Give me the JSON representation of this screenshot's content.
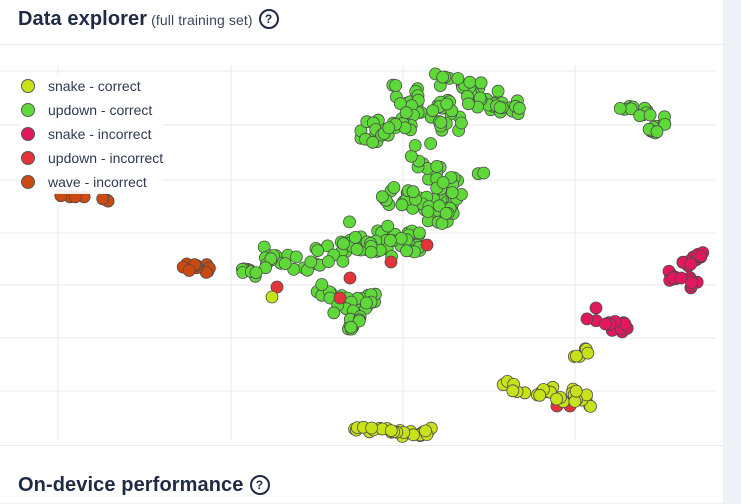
{
  "header": {
    "title": "Data explorer",
    "subtitle": "(full training set)",
    "help_icon": "question-circle-icon"
  },
  "legend": [
    {
      "label": "snake - correct",
      "color": "#c8e21a"
    },
    {
      "label": "updown - correct",
      "color": "#5fd93a"
    },
    {
      "label": "snake - incorrect",
      "color": "#e0195f"
    },
    {
      "label": "updown - incorrect",
      "color": "#e3343a"
    },
    {
      "label": "wave - incorrect",
      "color": "#cc4a12"
    }
  ],
  "section2": {
    "title": "On-device performance",
    "help_icon": "question-circle-icon"
  }
}
